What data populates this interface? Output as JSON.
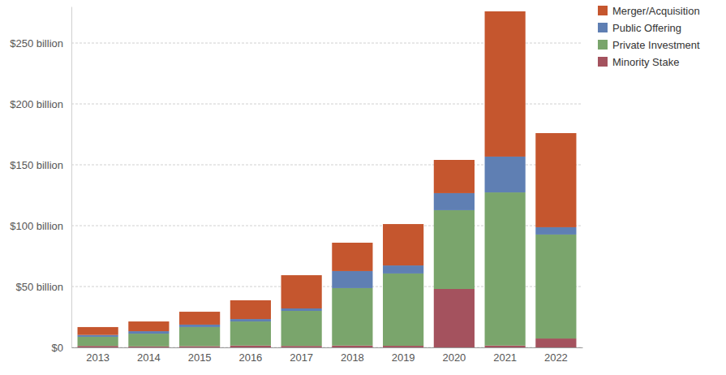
{
  "chart_data": {
    "type": "bar",
    "stacked": true,
    "grid": true,
    "legend": "top-right",
    "categories": [
      "2013",
      "2014",
      "2015",
      "2016",
      "2017",
      "2018",
      "2019",
      "2020",
      "2021",
      "2022"
    ],
    "series": [
      {
        "name": "Minority Stake",
        "color": "#a4525e",
        "values": [
          1.2,
          0.8,
          1,
          1.5,
          1.2,
          1.5,
          1.3,
          48,
          1.5,
          7.3
        ]
      },
      {
        "name": "Private Investment",
        "color": "#7aa56c",
        "values": [
          7.5,
          10.5,
          15.7,
          19.8,
          28.8,
          47.2,
          59.4,
          64.7,
          125.8,
          85.4
        ]
      },
      {
        "name": "Public Offering",
        "color": "#5f7fb3",
        "values": [
          1.5,
          2,
          2,
          2,
          2,
          14,
          6.6,
          14,
          29.4,
          6
        ]
      },
      {
        "name": "Merger/Acquisition",
        "color": "#c5562e",
        "values": [
          6.5,
          8,
          10.6,
          15.4,
          27.3,
          23.3,
          34,
          27.3,
          119.3,
          77.3
        ]
      }
    ],
    "ylim": [
      0,
      280
    ],
    "yticks": [
      {
        "value": 0,
        "label": "$0"
      },
      {
        "value": 50,
        "label": "$50 billion"
      },
      {
        "value": 100,
        "label": "$100 billion"
      },
      {
        "value": 150,
        "label": "$150 billion"
      },
      {
        "value": 200,
        "label": "$200 billion"
      },
      {
        "value": 250,
        "label": "$250 billion"
      }
    ]
  }
}
